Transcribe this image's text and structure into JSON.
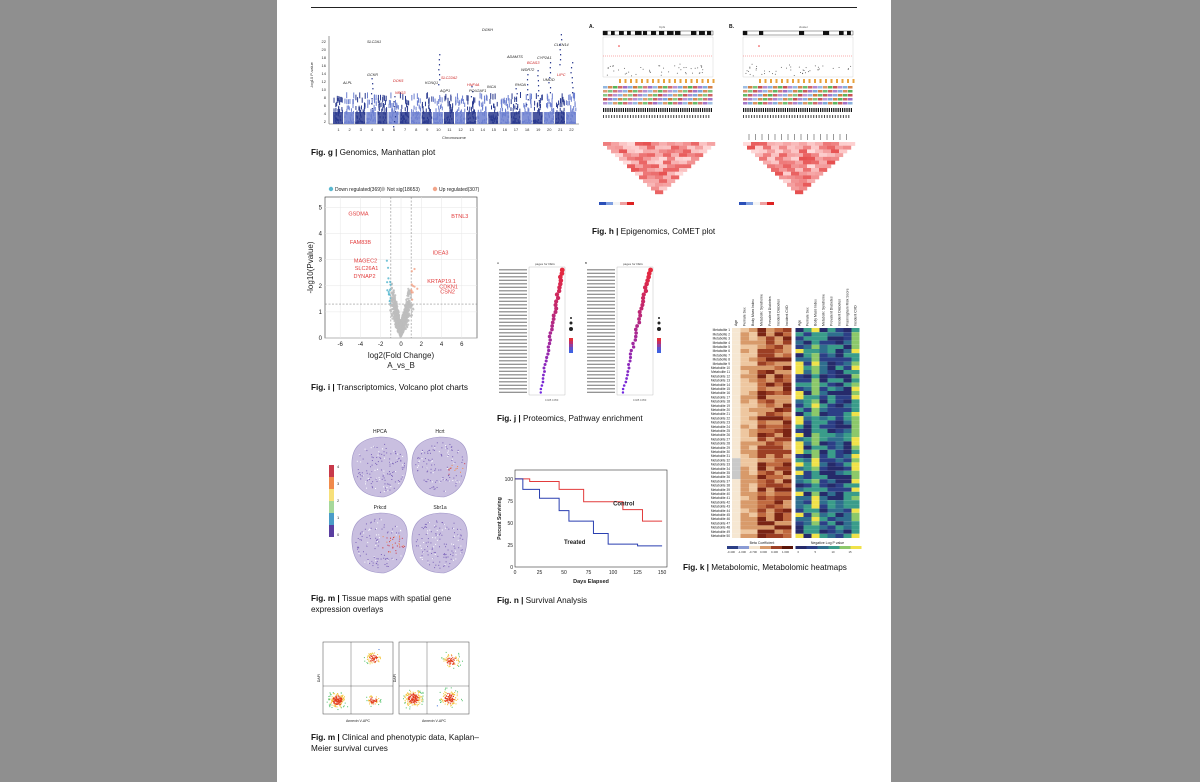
{
  "captions": {
    "g": {
      "label": "Fig. g |",
      "text": " Genomics, Manhattan plot"
    },
    "h": {
      "label": "Fig. h |",
      "text": " Epigenomics, CoMET plot"
    },
    "i": {
      "label": "Fig. i |",
      "text": " Transcriptomics, Volcano plot charts"
    },
    "j": {
      "label": "Fig. j |",
      "text": " Proteomics, Pathway enrichment"
    },
    "k": {
      "label": "Fig. k |",
      "text": " Metabolomic, Metabolomic heatmaps"
    },
    "m1": {
      "label": "Fig. m |",
      "text": " Tissue maps with spatial gene expression overlays"
    },
    "n": {
      "label": "Fig. n |",
      "text": " Survival Analysis"
    },
    "m2": {
      "label": "Fig. m |",
      "text": " Clinical and phenotypic data, Kaplan–Meier survival curves"
    }
  },
  "manhattan": {
    "ylabel": "-log10 P-value",
    "xlabel": "Chromosome",
    "yticks": [
      "22",
      "20",
      "18",
      "16",
      "14",
      "12",
      "10",
      "8",
      "6",
      "4",
      "2"
    ],
    "chromosomes": [
      "1",
      "2",
      "3",
      "4",
      "5",
      "6",
      "7",
      "8",
      "9",
      "10",
      "11",
      "12",
      "13",
      "14",
      "15",
      "16",
      "17",
      "18",
      "19",
      "20",
      "21",
      "22"
    ],
    "genes": [
      "SLC2A1",
      "DGKH",
      "CLCN14",
      "CYP2A1",
      "BCAS3",
      "LIPC",
      "UMOD",
      "RHOA",
      "KCNQ1",
      "SLC22A2",
      "HNF4A",
      "ALPL",
      "GCKR",
      "DOK5",
      "NRG3",
      "POU2AF1",
      "AQP1",
      "INCA",
      "WDR72",
      "ADAMTS"
    ]
  },
  "comet": {
    "panels": [
      {
        "label": "A.",
        "title": "CpG"
      },
      {
        "label": "B.",
        "title": "cluster"
      }
    ]
  },
  "volcano": {
    "legend": [
      {
        "label": "Down regulated(369)",
        "color": "#5bb8d0"
      },
      {
        "label": "Not sig(18653)",
        "color": "#bdbdbd"
      },
      {
        "label": "Up regulated(307)",
        "color": "#f2a58a"
      }
    ],
    "ylabel": "-log10(Pvalue)",
    "xlabel": "log2(Fold Change)",
    "subtitle": "A_vs_B",
    "xticks": [
      "-6",
      "-4",
      "-2",
      "0",
      "2",
      "4",
      "6"
    ],
    "yticks": [
      "5",
      "4",
      "3",
      "2",
      "1",
      "0"
    ],
    "genes": [
      "GSDMA",
      "BTNL3",
      "FAM83B",
      "IDEA3",
      "MAGEC2",
      "SLC26A1",
      "DYNAP2",
      "KRTAP19.1",
      "CDKN1",
      "CSN2"
    ]
  },
  "pathway": {
    "panels": [
      {
        "label": "A",
        "title": "pages for DEG"
      },
      {
        "label": "B",
        "title": "pages for DEG"
      }
    ]
  },
  "survival": {
    "ylabel": "Percent Surviving",
    "xlabel": "Days Elapsed",
    "xticks": [
      "0",
      "25",
      "50",
      "75",
      "100",
      "125",
      "150"
    ],
    "yticks": [
      "100",
      "75",
      "50",
      "25",
      "0"
    ],
    "control_label": "Control",
    "treated_label": "Treated",
    "control_color": "#e23b3b",
    "treated_color": "#2a3fb0"
  },
  "tissue": {
    "titles": [
      "HPCA",
      "Hcrt",
      "Prkcd",
      "Sbr1a"
    ],
    "scale": [
      "4",
      "3",
      "2",
      "1",
      "0"
    ]
  },
  "metab": {
    "rows_prefix": "Metabolite",
    "row_count": 50,
    "left_cols": [
      "Age",
      "Female Sex",
      "Body Mass Index",
      "Metabolic Syndrome",
      "Prevalent Diabetes",
      "Incident Diabetes",
      "Incident CVD"
    ],
    "right_cols": [
      "Age",
      "Female Sex",
      "Body Mass Index",
      "Metabolic Syndrome",
      "Prevalent Diabetes",
      "Incident Diabetes",
      "Framingham Risk Score",
      "Incident CVD"
    ],
    "legend_left_title": "Beta Coefficient",
    "legend_right_title": "Negative Log P value",
    "legend_left_ticks": [
      "-0.400",
      "-1.000",
      "-0.700",
      "0.000",
      "0.400",
      "1.000"
    ],
    "legend_right_ticks": [
      "0",
      "5",
      "10",
      "15"
    ]
  },
  "flow": {
    "ylabel": "DAPI",
    "xlabel": "Annexin V-APC"
  }
}
